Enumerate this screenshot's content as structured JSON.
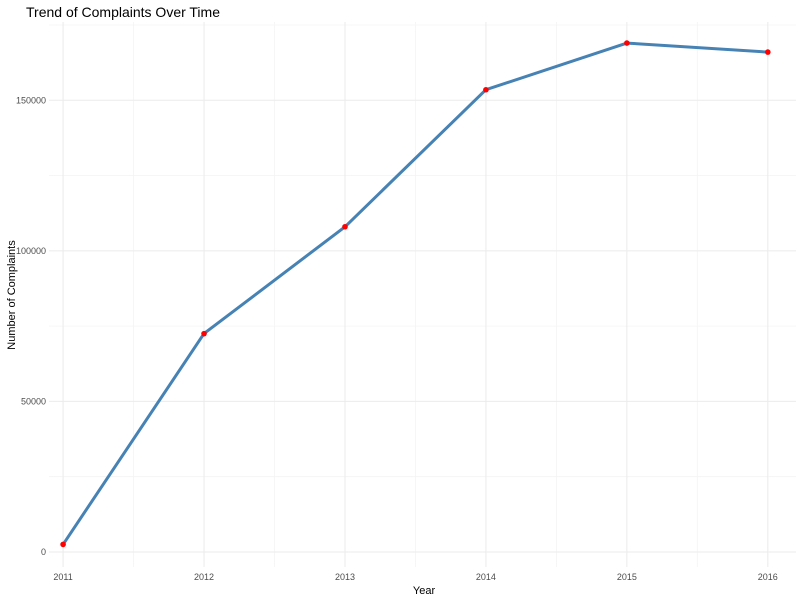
{
  "chart_data": {
    "type": "line",
    "title": "Trend of Complaints Over Time",
    "xlabel": "Year",
    "ylabel": "Number of Complaints",
    "x": [
      2011,
      2012,
      2013,
      2014,
      2015,
      2016
    ],
    "series": [
      {
        "values": [
          2500,
          72500,
          108000,
          153500,
          169000,
          166000
        ]
      }
    ],
    "xlim": [
      2010.9,
      2016.2
    ],
    "ylim": [
      -5000,
      176000
    ],
    "x_ticks": [
      "2011",
      "2012",
      "2013",
      "2014",
      "2015",
      "2016"
    ],
    "y_ticks": [
      0,
      50000,
      100000,
      150000
    ],
    "y_tick_labels": [
      "0",
      "50000",
      "100000",
      "150000"
    ],
    "grid": true,
    "legend": "none",
    "colors": {
      "line": "#4682b4",
      "point": "#ff0000",
      "grid": "#ebebeb"
    }
  }
}
